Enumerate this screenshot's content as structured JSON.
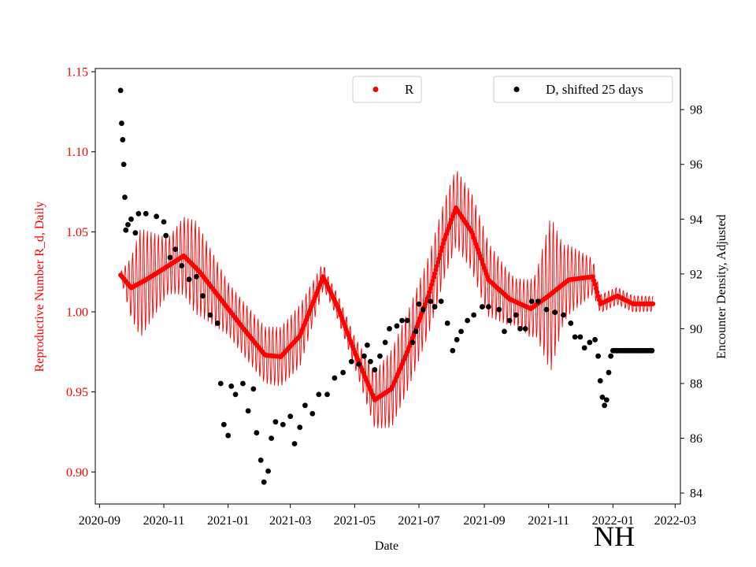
{
  "chart_data": {
    "type": "scatter",
    "xlabel": "Date",
    "ylabel_left": "Reproductive Number R_d, Daily",
    "ylabel_right": "Encounter Density, Adjusted",
    "region_label": "NH",
    "x_range": [
      "2020-08-28",
      "2022-03-06"
    ],
    "x_ticks": [
      "2020-09",
      "2020-11",
      "2021-01",
      "2021-03",
      "2021-05",
      "2021-07",
      "2021-09",
      "2021-11",
      "2022-01",
      "2022-03"
    ],
    "y_left_range": [
      0.88,
      1.152
    ],
    "y_left_ticks": [
      "0.90",
      "0.95",
      "1.00",
      "1.05",
      "1.10",
      "1.15"
    ],
    "y_right_range": [
      83.6,
      99.5
    ],
    "y_right_ticks": [
      "84",
      "86",
      "88",
      "90",
      "92",
      "94",
      "96",
      "98"
    ],
    "colors": {
      "left_axis": "#ff0000",
      "series_R": "#ff0000",
      "series_D": "#000000"
    },
    "legend_R": "R",
    "legend_D": "D, shifted 25 days",
    "series": [
      {
        "name": "R",
        "axis": "left",
        "color": "#ff0000",
        "marker": "dot-with-oscillation-band",
        "trend": [
          [
            "2020-09-21",
            1.023
          ],
          [
            "2020-10-01",
            1.015
          ],
          [
            "2020-10-15",
            1.02
          ],
          [
            "2020-11-01",
            1.027
          ],
          [
            "2020-11-20",
            1.035
          ],
          [
            "2020-12-05",
            1.025
          ],
          [
            "2020-12-25",
            1.008
          ],
          [
            "2021-01-15",
            0.99
          ],
          [
            "2021-02-05",
            0.973
          ],
          [
            "2021-02-20",
            0.972
          ],
          [
            "2021-03-10",
            0.985
          ],
          [
            "2021-03-25",
            1.01
          ],
          [
            "2021-04-01",
            1.022
          ],
          [
            "2021-04-15",
            1.003
          ],
          [
            "2021-05-01",
            0.975
          ],
          [
            "2021-05-20",
            0.945
          ],
          [
            "2021-06-05",
            0.952
          ],
          [
            "2021-06-20",
            0.975
          ],
          [
            "2021-07-10",
            1.01
          ],
          [
            "2021-07-25",
            1.045
          ],
          [
            "2021-08-05",
            1.065
          ],
          [
            "2021-08-20",
            1.05
          ],
          [
            "2021-09-05",
            1.02
          ],
          [
            "2021-09-25",
            1.008
          ],
          [
            "2021-10-15",
            1.002
          ],
          [
            "2021-11-01",
            1.01
          ],
          [
            "2021-11-20",
            1.02
          ],
          [
            "2021-12-13",
            1.022
          ],
          [
            "2021-12-20",
            1.005
          ],
          [
            "2022-01-05",
            1.01
          ],
          [
            "2022-01-20",
            1.005
          ],
          [
            "2022-02-08",
            1.005
          ]
        ],
        "oscillation_amplitude": [
          [
            "2020-09-21",
            0.002
          ],
          [
            "2020-10-10",
            0.035
          ],
          [
            "2020-11-05",
            0.018
          ],
          [
            "2020-12-01",
            0.03
          ],
          [
            "2021-01-01",
            0.017
          ],
          [
            "2021-02-01",
            0.018
          ],
          [
            "2021-03-10",
            0.02
          ],
          [
            "2021-04-05",
            0.007
          ],
          [
            "2021-05-01",
            0.01
          ],
          [
            "2021-06-05",
            0.025
          ],
          [
            "2021-07-01",
            0.025
          ],
          [
            "2021-08-05",
            0.025
          ],
          [
            "2021-09-01",
            0.025
          ],
          [
            "2021-10-01",
            0.015
          ],
          [
            "2021-10-20",
            0.02
          ],
          [
            "2021-11-03",
            0.05
          ],
          [
            "2021-11-15",
            0.025
          ],
          [
            "2021-12-12",
            0.012
          ],
          [
            "2021-12-20",
            0.006
          ],
          [
            "2022-02-08",
            0.005
          ]
        ]
      },
      {
        "name": "D, shifted 25 days",
        "axis": "right",
        "color": "#000000",
        "marker": "dot",
        "points": [
          [
            "2020-09-21",
            98.7
          ],
          [
            "2020-09-22",
            97.5
          ],
          [
            "2020-09-23",
            96.9
          ],
          [
            "2020-09-24",
            96.0
          ],
          [
            "2020-09-25",
            94.8
          ],
          [
            "2020-09-26",
            93.6
          ],
          [
            "2020-09-28",
            93.8
          ],
          [
            "2020-10-01",
            94.0
          ],
          [
            "2020-10-05",
            93.5
          ],
          [
            "2020-10-08",
            94.2
          ],
          [
            "2020-10-15",
            94.2
          ],
          [
            "2020-10-25",
            94.1
          ],
          [
            "2020-11-01",
            93.9
          ],
          [
            "2020-11-03",
            93.4
          ],
          [
            "2020-11-07",
            92.6
          ],
          [
            "2020-11-12",
            92.9
          ],
          [
            "2020-11-18",
            92.3
          ],
          [
            "2020-11-25",
            91.8
          ],
          [
            "2020-12-02",
            91.9
          ],
          [
            "2020-12-08",
            91.2
          ],
          [
            "2020-12-15",
            90.5
          ],
          [
            "2020-12-22",
            90.2
          ],
          [
            "2020-12-25",
            88.0
          ],
          [
            "2020-12-28",
            86.5
          ],
          [
            "2021-01-01",
            86.1
          ],
          [
            "2021-01-04",
            87.9
          ],
          [
            "2021-01-08",
            87.6
          ],
          [
            "2021-01-15",
            88.0
          ],
          [
            "2021-01-20",
            87.0
          ],
          [
            "2021-01-25",
            87.8
          ],
          [
            "2021-01-28",
            86.2
          ],
          [
            "2021-02-01",
            85.2
          ],
          [
            "2021-02-04",
            84.4
          ],
          [
            "2021-02-08",
            84.8
          ],
          [
            "2021-02-11",
            86.0
          ],
          [
            "2021-02-15",
            86.6
          ],
          [
            "2021-02-22",
            86.5
          ],
          [
            "2021-03-01",
            86.8
          ],
          [
            "2021-03-05",
            85.8
          ],
          [
            "2021-03-10",
            86.4
          ],
          [
            "2021-03-15",
            87.2
          ],
          [
            "2021-03-22",
            86.9
          ],
          [
            "2021-03-28",
            87.6
          ],
          [
            "2021-04-05",
            87.6
          ],
          [
            "2021-04-12",
            88.2
          ],
          [
            "2021-04-20",
            88.4
          ],
          [
            "2021-04-28",
            88.8
          ],
          [
            "2021-05-05",
            88.7
          ],
          [
            "2021-05-10",
            89.0
          ],
          [
            "2021-05-13",
            89.4
          ],
          [
            "2021-05-16",
            88.8
          ],
          [
            "2021-05-20",
            88.5
          ],
          [
            "2021-05-25",
            89.0
          ],
          [
            "2021-05-30",
            89.5
          ],
          [
            "2021-06-03",
            90.0
          ],
          [
            "2021-06-10",
            90.1
          ],
          [
            "2021-06-15",
            90.3
          ],
          [
            "2021-06-20",
            90.3
          ],
          [
            "2021-06-25",
            89.5
          ],
          [
            "2021-06-28",
            89.9
          ],
          [
            "2021-07-01",
            90.9
          ],
          [
            "2021-07-05",
            90.7
          ],
          [
            "2021-07-12",
            91.0
          ],
          [
            "2021-07-16",
            90.8
          ],
          [
            "2021-07-22",
            91.0
          ],
          [
            "2021-07-28",
            90.2
          ],
          [
            "2021-08-02",
            89.2
          ],
          [
            "2021-08-06",
            89.6
          ],
          [
            "2021-08-10",
            89.9
          ],
          [
            "2021-08-16",
            90.3
          ],
          [
            "2021-08-22",
            90.5
          ],
          [
            "2021-08-30",
            90.8
          ],
          [
            "2021-09-05",
            90.8
          ],
          [
            "2021-09-15",
            90.7
          ],
          [
            "2021-09-20",
            89.9
          ],
          [
            "2021-09-25",
            90.3
          ],
          [
            "2021-10-01",
            90.5
          ],
          [
            "2021-10-05",
            90.0
          ],
          [
            "2021-10-10",
            90.0
          ],
          [
            "2021-10-16",
            91.0
          ],
          [
            "2021-10-22",
            91.0
          ],
          [
            "2021-10-30",
            90.7
          ],
          [
            "2021-11-07",
            90.6
          ],
          [
            "2021-11-15",
            90.5
          ],
          [
            "2021-11-22",
            90.2
          ],
          [
            "2021-11-26",
            89.7
          ],
          [
            "2021-12-01",
            89.7
          ],
          [
            "2021-12-05",
            89.3
          ],
          [
            "2021-12-10",
            89.5
          ],
          [
            "2021-12-15",
            89.6
          ],
          [
            "2021-12-18",
            89.0
          ],
          [
            "2021-12-20",
            88.1
          ],
          [
            "2021-12-22",
            87.5
          ],
          [
            "2021-12-24",
            87.2
          ],
          [
            "2021-12-26",
            87.4
          ],
          [
            "2021-12-28",
            88.4
          ],
          [
            "2021-12-30",
            89.0
          ],
          [
            "2022-01-05",
            89.2
          ],
          [
            "2022-01-15",
            89.2
          ],
          [
            "2022-01-25",
            89.2
          ],
          [
            "2022-02-07",
            89.2
          ]
        ]
      }
    ]
  }
}
